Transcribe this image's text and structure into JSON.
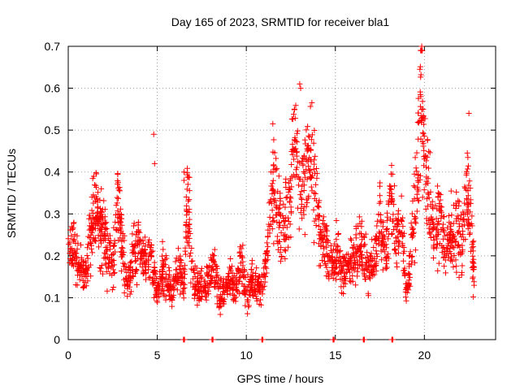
{
  "chart_data": {
    "type": "scatter",
    "title": "Day 165 of 2023, SRMTID for receiver bla1",
    "xlabel": "GPS time / hours",
    "ylabel": "SRMTID / TECUs",
    "xlim": [
      0,
      24
    ],
    "ylim": [
      0,
      0.7
    ],
    "xticks": [
      0,
      5,
      10,
      15,
      20
    ],
    "yticks": [
      0,
      0.1,
      0.2,
      0.3,
      0.4,
      0.5,
      0.6,
      0.7
    ],
    "ytick_labels": [
      "0",
      "0.1",
      "0.2",
      "0.3",
      "0.4",
      "0.5",
      "0.6",
      "0.7"
    ],
    "grid": true,
    "marker": "+",
    "series": [
      {
        "name": "SRMTID",
        "color": "#ff0000",
        "x": [
          0.0,
          0.3,
          0.6,
          0.9,
          1.2,
          1.4,
          1.6,
          1.8,
          2.0,
          2.2,
          2.5,
          2.8,
          3.0,
          3.3,
          3.6,
          3.9,
          4.2,
          4.5,
          4.8,
          5.0,
          5.3,
          5.6,
          5.9,
          6.2,
          6.5,
          6.7,
          7.0,
          7.3,
          7.6,
          7.9,
          8.2,
          8.5,
          8.8,
          9.1,
          9.4,
          9.7,
          10.0,
          10.3,
          10.6,
          10.9,
          11.2,
          11.5,
          11.8,
          12.1,
          12.4,
          12.7,
          13.0,
          13.3,
          13.6,
          13.9,
          14.2,
          14.5,
          14.8,
          15.1,
          15.4,
          15.7,
          16.0,
          16.3,
          16.6,
          16.9,
          17.2,
          17.5,
          17.8,
          18.1,
          18.4,
          18.7,
          19.0,
          19.3,
          19.6,
          19.8,
          20.0,
          20.3,
          20.6,
          20.9,
          21.2,
          21.5,
          21.8,
          22.1,
          22.4,
          22.6,
          22.8
        ],
        "y": [
          0.2,
          0.22,
          0.18,
          0.14,
          0.24,
          0.29,
          0.3,
          0.26,
          0.25,
          0.2,
          0.18,
          0.33,
          0.25,
          0.13,
          0.19,
          0.23,
          0.2,
          0.21,
          0.16,
          0.1,
          0.17,
          0.13,
          0.11,
          0.18,
          0.13,
          0.35,
          0.16,
          0.12,
          0.13,
          0.15,
          0.18,
          0.1,
          0.12,
          0.14,
          0.11,
          0.19,
          0.1,
          0.14,
          0.12,
          0.12,
          0.22,
          0.38,
          0.3,
          0.26,
          0.32,
          0.48,
          0.35,
          0.38,
          0.46,
          0.36,
          0.24,
          0.22,
          0.17,
          0.21,
          0.15,
          0.17,
          0.2,
          0.23,
          0.2,
          0.15,
          0.19,
          0.3,
          0.18,
          0.36,
          0.22,
          0.29,
          0.1,
          0.24,
          0.38,
          0.62,
          0.44,
          0.32,
          0.23,
          0.31,
          0.21,
          0.25,
          0.27,
          0.22,
          0.36,
          0.27,
          0.15
        ]
      }
    ],
    "outliers": {
      "x": [
        4.8,
        4.85,
        6.5,
        6.5,
        13.0,
        13.05,
        19.85,
        19.8,
        22.5
      ],
      "y": [
        0.49,
        0.42,
        0.4,
        0.38,
        0.61,
        0.6,
        0.7,
        0.58,
        0.54
      ]
    },
    "zero_markers": {
      "x": [
        6.5,
        8.1,
        10.9,
        14.9,
        16.6,
        18.2
      ],
      "y": [
        0,
        0,
        0,
        0,
        0,
        0
      ]
    }
  }
}
